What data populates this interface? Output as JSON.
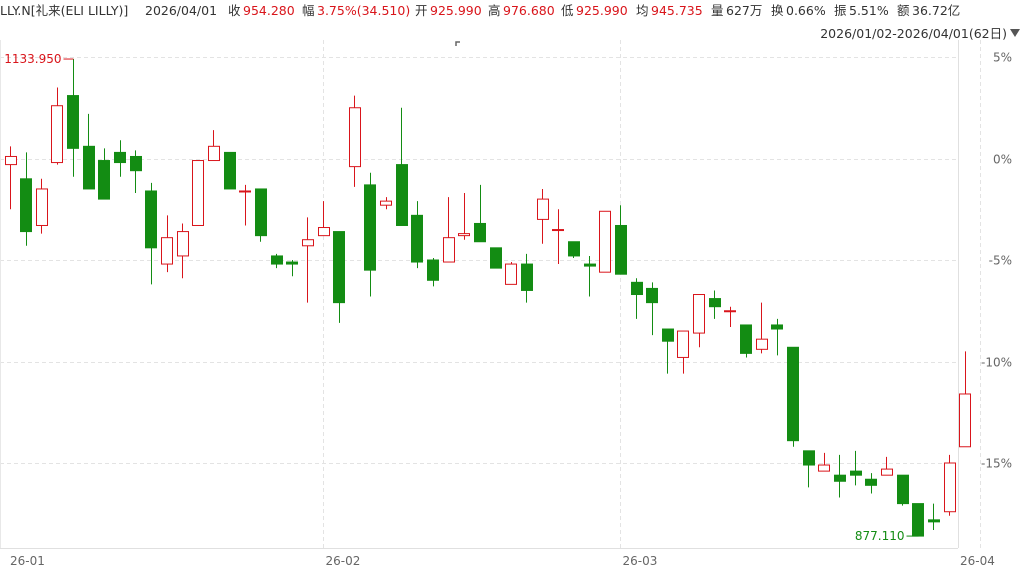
{
  "header": {
    "symbol": "LLY.N[礼来(ELI LILLY)]",
    "date": "2026/04/01",
    "close_label": "收",
    "close": "954.280",
    "change_label": "幅",
    "change": "3.75%(34.510)",
    "open_label": "开",
    "open": "925.990",
    "high_label": "高",
    "high": "976.680",
    "low_label": "低",
    "low": "925.990",
    "avg_label": "均",
    "avg": "945.735",
    "volume_label": "量",
    "volume": "627万",
    "turnover_label": "换",
    "turnover": "0.66%",
    "amplitude_label": "振",
    "amplitude": "5.51%",
    "amount_label": "额",
    "amount": "36.72亿"
  },
  "range_label": "2026/01/02-2026/04/01(62日)",
  "colors": {
    "up": "#d9151b",
    "down": "#138c13",
    "grid": "#e6e6e6",
    "max_label": "#d9151b",
    "min_label": "#138c13"
  },
  "chart_data": {
    "type": "candlestick",
    "y_unit": "% change from reference",
    "ylim": [
      -19.5,
      5
    ],
    "y_ticks": [
      5,
      0,
      -5,
      -10,
      -15
    ],
    "y_tick_labels": [
      "5%",
      "0%",
      "-5%",
      "-10%",
      "-15%"
    ],
    "x_tick_labels": [
      {
        "label": "26-01",
        "index": 0
      },
      {
        "label": "26-02",
        "index": 20
      },
      {
        "label": "26-03",
        "index": 39
      },
      {
        "label": "26-04",
        "index": 62
      }
    ],
    "max_label": "1133.950",
    "min_label": "877.110",
    "candles": [
      {
        "o": -0.3,
        "c": 0.1,
        "h": 0.6,
        "l": -2.5
      },
      {
        "o": -1.0,
        "c": -3.6,
        "h": 0.3,
        "l": -4.3
      },
      {
        "o": -3.3,
        "c": -1.5,
        "h": -1.0,
        "l": -3.7
      },
      {
        "o": -0.2,
        "c": 2.6,
        "h": 3.5,
        "l": -0.3
      },
      {
        "o": 3.1,
        "c": 0.5,
        "h": 4.9,
        "l": -0.9
      },
      {
        "o": 0.6,
        "c": -1.5,
        "h": 2.2,
        "l": -1.5
      },
      {
        "o": -0.1,
        "c": -2.0,
        "h": 0.5,
        "l": -2.0
      },
      {
        "o": 0.3,
        "c": -0.2,
        "h": 0.9,
        "l": -0.9
      },
      {
        "o": 0.1,
        "c": -0.6,
        "h": 0.4,
        "l": -1.7
      },
      {
        "o": -1.6,
        "c": -4.4,
        "h": -1.2,
        "l": -6.2
      },
      {
        "o": -5.2,
        "c": -3.9,
        "h": -2.8,
        "l": -5.6
      },
      {
        "o": -4.8,
        "c": -3.6,
        "h": -3.2,
        "l": -5.9
      },
      {
        "o": -3.3,
        "c": -0.1,
        "h": -0.1,
        "l": -3.3
      },
      {
        "o": -0.1,
        "c": 0.6,
        "h": 1.4,
        "l": -0.1
      },
      {
        "o": 0.3,
        "c": -1.5,
        "h": 0.3,
        "l": -1.5
      },
      {
        "o": -1.6,
        "c": -1.6,
        "h": -1.3,
        "l": -3.3
      },
      {
        "o": -1.5,
        "c": -3.8,
        "h": -1.5,
        "l": -4.1
      },
      {
        "o": -4.8,
        "c": -5.2,
        "h": -4.7,
        "l": -5.4
      },
      {
        "o": -5.1,
        "c": -5.2,
        "h": -5.0,
        "l": -5.8
      },
      {
        "o": -4.3,
        "c": -4.0,
        "h": -2.9,
        "l": -7.1
      },
      {
        "o": -3.8,
        "c": -3.4,
        "h": -2.1,
        "l": -3.8
      },
      {
        "o": -3.6,
        "c": -7.1,
        "h": -3.6,
        "l": -8.1
      },
      {
        "o": -0.4,
        "c": 2.5,
        "h": 3.1,
        "l": -1.4
      },
      {
        "o": -1.3,
        "c": -5.5,
        "h": -0.7,
        "l": -6.8
      },
      {
        "o": -2.3,
        "c": -2.1,
        "h": -1.9,
        "l": -2.5
      },
      {
        "o": -0.3,
        "c": -3.3,
        "h": 2.5,
        "l": -3.3
      },
      {
        "o": -2.8,
        "c": -5.1,
        "h": -2.1,
        "l": -5.4
      },
      {
        "o": -5.0,
        "c": -6.0,
        "h": -4.9,
        "l": -6.3
      },
      {
        "o": -5.1,
        "c": -3.9,
        "h": -1.9,
        "l": -5.1
      },
      {
        "o": -3.8,
        "c": -3.7,
        "h": -1.7,
        "l": -4.0
      },
      {
        "o": -3.2,
        "c": -4.1,
        "h": -1.3,
        "l": -4.1
      },
      {
        "o": -4.4,
        "c": -5.4,
        "h": -4.4,
        "l": -5.4
      },
      {
        "o": -6.2,
        "c": -5.2,
        "h": -5.1,
        "l": -6.2
      },
      {
        "o": -5.2,
        "c": -6.5,
        "h": -4.7,
        "l": -7.1
      },
      {
        "o": -3.0,
        "c": -2.0,
        "h": -1.5,
        "l": -4.2
      },
      {
        "o": -3.5,
        "c": -3.5,
        "h": -2.5,
        "l": -5.2
      },
      {
        "o": -4.1,
        "c": -4.8,
        "h": -4.1,
        "l": -4.9
      },
      {
        "o": -5.2,
        "c": -5.3,
        "h": -4.8,
        "l": -6.8
      },
      {
        "o": -5.6,
        "c": -2.6,
        "h": -2.6,
        "l": -5.6
      },
      {
        "o": -3.3,
        "c": -5.7,
        "h": -2.3,
        "l": -5.7
      },
      {
        "o": -6.1,
        "c": -6.7,
        "h": -5.9,
        "l": -7.9
      },
      {
        "o": -6.4,
        "c": -7.1,
        "h": -6.1,
        "l": -8.7
      },
      {
        "o": -8.4,
        "c": -9.0,
        "h": -8.4,
        "l": -10.6
      },
      {
        "o": -9.8,
        "c": -8.5,
        "h": -8.5,
        "l": -10.6
      },
      {
        "o": -8.6,
        "c": -6.7,
        "h": -6.7,
        "l": -9.3
      },
      {
        "o": -6.9,
        "c": -7.3,
        "h": -6.5,
        "l": -7.9
      },
      {
        "o": -7.5,
        "c": -7.5,
        "h": -7.3,
        "l": -8.3
      },
      {
        "o": -8.2,
        "c": -9.6,
        "h": -8.2,
        "l": -9.8
      },
      {
        "o": -9.4,
        "c": -8.9,
        "h": -7.1,
        "l": -9.6
      },
      {
        "o": -8.2,
        "c": -8.4,
        "h": -7.9,
        "l": -9.7
      },
      {
        "o": -9.3,
        "c": -13.9,
        "h": -9.3,
        "l": -14.2
      },
      {
        "o": -14.4,
        "c": -15.1,
        "h": -14.4,
        "l": -16.2
      },
      {
        "o": -15.4,
        "c": -15.1,
        "h": -14.5,
        "l": -15.4
      },
      {
        "o": -15.6,
        "c": -15.9,
        "h": -14.6,
        "l": -16.7
      },
      {
        "o": -15.4,
        "c": -15.6,
        "h": -14.4,
        "l": -16.1
      },
      {
        "o": -15.8,
        "c": -16.1,
        "h": -15.5,
        "l": -16.5
      },
      {
        "o": -15.6,
        "c": -15.3,
        "h": -14.7,
        "l": -15.6
      },
      {
        "o": -15.6,
        "c": -17.0,
        "h": -15.6,
        "l": -17.1
      },
      {
        "o": -17.0,
        "c": -18.6,
        "h": -17.0,
        "l": -18.6
      },
      {
        "o": -17.8,
        "c": -17.9,
        "h": -17.0,
        "l": -18.3
      },
      {
        "o": -17.4,
        "c": -15.0,
        "h": -14.6,
        "l": -17.6
      },
      {
        "o": -14.2,
        "c": -11.6,
        "h": -9.5,
        "l": -14.2
      }
    ]
  }
}
